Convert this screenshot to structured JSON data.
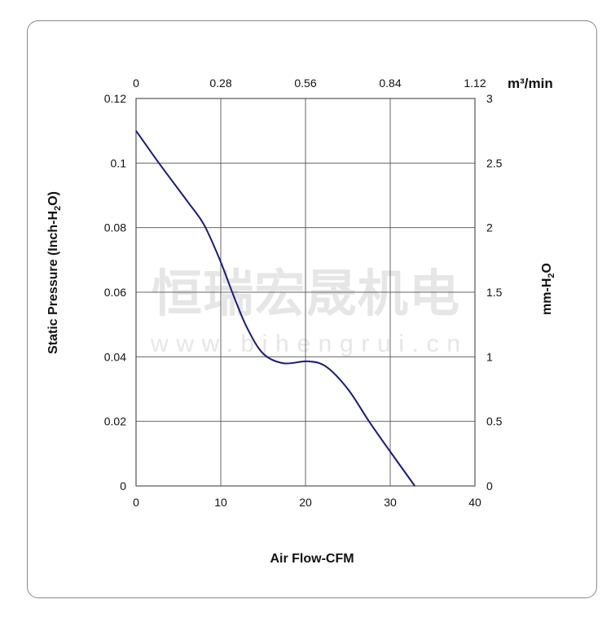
{
  "chart_data": {
    "type": "line",
    "xlabel": "Air Flow-CFM",
    "ylabel": "Static Pressure (Inch-H2O)",
    "ylabel_parts": [
      "Static Pressure (Inch-H",
      "2",
      "O)"
    ],
    "x2label": "m³/min",
    "y2label_parts": [
      "mm-H",
      "2",
      "O"
    ],
    "xlim": [
      0,
      40
    ],
    "ylim": [
      0,
      0.12
    ],
    "y2lim": [
      0,
      3
    ],
    "grid": true,
    "x_ticks": [
      "0",
      "10",
      "20",
      "30",
      "40"
    ],
    "y_ticks": [
      "0",
      "0.02",
      "0.04",
      "0.06",
      "0.08",
      "0.1",
      "0.12"
    ],
    "x2_ticks": [
      "0",
      "0.28",
      "0.56",
      "0.84",
      "1.12"
    ],
    "y2_ticks": [
      "0",
      "0.5",
      "1",
      "1.5",
      "2",
      "2.5",
      "3"
    ],
    "line_color": "#1a1a7a",
    "series": [
      {
        "x": [
          0,
          2.7,
          6.1,
          8.0,
          9.9,
          11.5,
          13.1,
          15.0,
          17.4,
          20.2,
          22.4,
          25.0,
          27.5,
          29.9,
          32.9
        ],
        "y": [
          0.11,
          0.1,
          0.088,
          0.081,
          0.07,
          0.059,
          0.049,
          0.041,
          0.038,
          0.0386,
          0.037,
          0.03,
          0.02,
          0.011,
          0
        ]
      }
    ]
  },
  "watermark": {
    "chinese": "恒瑞宏晟机电",
    "url": "www.bjhengrui.cn"
  }
}
